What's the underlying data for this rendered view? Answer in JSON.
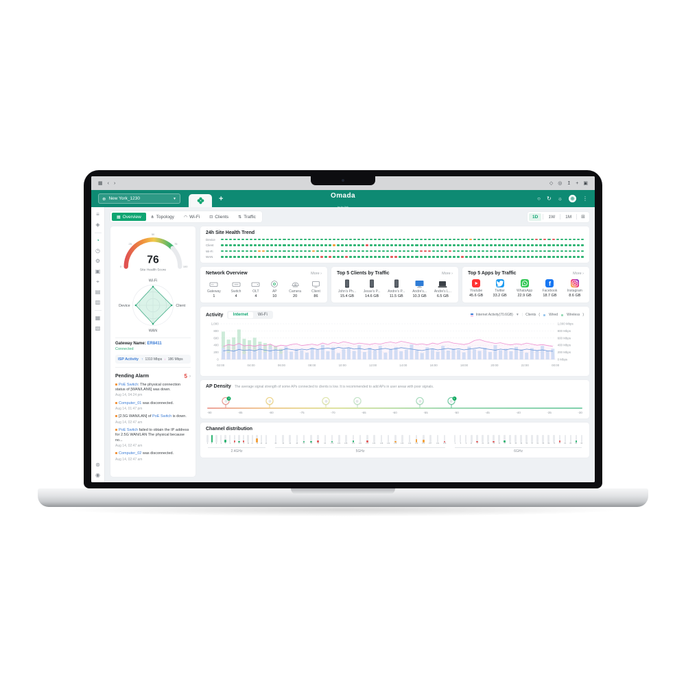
{
  "browser": {
    "window_icons": [
      "window-icon",
      "back-icon",
      "forward-icon"
    ],
    "action_icons": [
      "shield-icon",
      "profile-icon",
      "share-icon",
      "new-tab-icon",
      "tabs-icon"
    ]
  },
  "header": {
    "site_selector": {
      "label": "New York_1230"
    },
    "logo": {
      "main": "Omada",
      "sub": "by tp-link"
    },
    "actions": [
      "search-icon",
      "refresh-icon",
      "brightness-icon",
      "globe-button-icon",
      "more-icon"
    ]
  },
  "nav": {
    "tabs": [
      {
        "label": "Overview",
        "icon": "overview-icon",
        "active": true
      },
      {
        "label": "Topology",
        "icon": "topology-icon",
        "active": false
      },
      {
        "label": "Wi-Fi",
        "icon": "wifi-icon",
        "active": false
      },
      {
        "label": "Clients",
        "icon": "clients-icon",
        "active": false
      },
      {
        "label": "Traffic",
        "icon": "traffic-icon",
        "active": false
      }
    ],
    "time_ranges": [
      {
        "label": "1D",
        "active": true
      },
      {
        "label": "1W",
        "active": false
      },
      {
        "label": "1M",
        "active": false
      }
    ]
  },
  "sidebar": {
    "top": [
      "compose-icon",
      "security-icon"
    ],
    "main": [
      "dashboard-icon",
      "history-icon",
      "settings-icon",
      "media-icon",
      "location-icon",
      "report-icon",
      "log-icon"
    ],
    "secondary": [
      "map-icon",
      "toolbox-icon"
    ],
    "bottom": [
      "preferences-icon",
      "help-icon"
    ],
    "active": "dashboard-icon"
  },
  "site_panel": {
    "gauge": {
      "value": "76",
      "label": "Site Health Score",
      "ticks": [
        "0",
        "25",
        "50",
        "75",
        "100"
      ],
      "percent": 0.76
    },
    "radar": {
      "top": "Wi-Fi",
      "right": "Client",
      "bottom": "WAN",
      "left": "Device",
      "values": [
        0.92,
        0.92,
        0.92,
        0.85
      ]
    },
    "gateway": {
      "label": "Gateway Name:",
      "name": "ER8411",
      "status": "Connected"
    },
    "isp": {
      "label": "ISP Activity",
      "up": "1310 Mbps",
      "down": "186 Mbps"
    },
    "alarms": {
      "title": "Pending Alarm",
      "count": "5",
      "items": [
        {
          "parts": [
            {
              "text": "PoE Switch",
              "link": true
            },
            {
              "text": ": The physical connection status of [WAN/LAN6] was down."
            }
          ],
          "time": "Aug 14, 04:24 pm"
        },
        {
          "parts": [
            {
              "text": "Computer_01",
              "link": true
            },
            {
              "text": " was disconnected."
            }
          ],
          "time": "Aug 14, 01:47 pm"
        },
        {
          "parts": [
            {
              "text": "[2.5G WAN/LAN] of "
            },
            {
              "text": "PoE Switch",
              "link": true
            },
            {
              "text": " is down."
            }
          ],
          "time": "Aug 14, 02:47 am"
        },
        {
          "parts": [
            {
              "text": "PoE Switch",
              "link": true
            },
            {
              "text": " failed to obtain the IP address for 2.5G WAN/LAN The physical because no..."
            }
          ],
          "time": "Aug 14, 02:47 am"
        },
        {
          "parts": [
            {
              "text": "Computer_02",
              "link": true
            },
            {
              "text": " was disconnected."
            }
          ],
          "time": "Aug 14, 02:47 am"
        }
      ]
    }
  },
  "overview_card": {
    "title": "Network Overview",
    "more": "More ›",
    "items": [
      {
        "label": "Gateway",
        "value": "1",
        "icon": "gateway"
      },
      {
        "label": "Switch",
        "value": "4",
        "icon": "switch"
      },
      {
        "label": "OLT",
        "value": "4",
        "icon": "olt"
      },
      {
        "label": "AP",
        "value": "10",
        "icon": "ap"
      },
      {
        "label": "Camera",
        "value": "20",
        "icon": "camera"
      },
      {
        "label": "Client",
        "value": "86",
        "icon": "client"
      }
    ]
  },
  "clients_card": {
    "title": "Top 5 Clients by Traffic",
    "more": "More ›",
    "items": [
      {
        "name": "John's Ph...",
        "value": "15.4 GB",
        "icon": "phone"
      },
      {
        "name": "Jesse's P...",
        "value": "14.6 GB",
        "icon": "phone"
      },
      {
        "name": "Andre's P...",
        "value": "11.5 GB",
        "icon": "phone"
      },
      {
        "name": "Andre's...",
        "value": "10.3 GB",
        "icon": "monitor"
      },
      {
        "name": "Andre's L...",
        "value": "6.5 GB",
        "icon": "laptop"
      }
    ]
  },
  "apps_card": {
    "title": "Top 5 Apps by Traffic",
    "more": "More ›",
    "items": [
      {
        "name": "Youtube",
        "value": "45.6 GB",
        "icon": "youtube",
        "color": "#ff3333"
      },
      {
        "name": "Twitter",
        "value": "33.2 GB",
        "icon": "twitter",
        "color": "#1d9bf0"
      },
      {
        "name": "WhatsApp",
        "value": "22.9 GB",
        "icon": "whatsapp",
        "color": "#2fc653"
      },
      {
        "name": "Facebook",
        "value": "18.7 GB",
        "icon": "facebook",
        "color": "#1877f2"
      },
      {
        "name": "Instagram",
        "value": "8.6 GB",
        "icon": "instagram",
        "color": "gradient"
      }
    ]
  },
  "activity_card": {
    "title": "Activity",
    "tabs": [
      {
        "label": "Internet",
        "active": true
      },
      {
        "label": "Wi-Fi",
        "active": false
      }
    ],
    "legend": "Internet Activity(70.6GB)",
    "clients_legend": {
      "label": "Clients",
      "open": "(",
      "wired": "Wired",
      "wireless": "Wireless",
      "close": ")"
    }
  },
  "density_card": {
    "title": "AP Density",
    "note": "The average signal strength of some APs connected to clients is low. It is recommended to add APs in user areas with poor signals."
  },
  "channel_card": {
    "title": "Channel distribution"
  },
  "chart_data": [
    {
      "id": "site_health_trend",
      "type": "heatmap",
      "title": "24h Site Health Trend",
      "segments": 88,
      "colors": {
        "ok": "#2fb574",
        "warn": "#f2a13c",
        "bad": "#e25b5b"
      },
      "rows": [
        {
          "label": "Device",
          "marks": {
            "60": "o",
            "76": "r",
            "78": "r",
            "80": "r"
          }
        },
        {
          "label": "Client",
          "marks": {
            "27": "o",
            "35": "r"
          }
        },
        {
          "label": "Wi-Fi",
          "marks": {
            "9": "o",
            "10": "o",
            "22": "o",
            "48": "r",
            "49": "r",
            "50": "r",
            "55": "r"
          }
        },
        {
          "label": "WAN",
          "marks": {
            "24": "r",
            "26": "r",
            "30": "r",
            "41": "r",
            "42": "r",
            "58": "r"
          }
        }
      ]
    },
    {
      "id": "activity",
      "type": "line",
      "ylim": [
        0,
        1000
      ],
      "y_ticks_left": [
        "0",
        "200",
        "400",
        "600",
        "800",
        "1,000"
      ],
      "y_ticks_right": [
        "0 Mbps",
        "200 Mbps",
        "400 Mbps",
        "600 Mbps",
        "800 Mbps",
        "1,000 Mbps"
      ],
      "x_ticks": [
        "02:00",
        "04:00",
        "06:00",
        "08:00",
        "10:00",
        "12:00",
        "14:00",
        "16:00",
        "18:00",
        "20:00",
        "22:00",
        "00:00"
      ],
      "series": [
        {
          "name": "client-bars",
          "type": "bar",
          "color": "rgba(88,190,130,0.30)",
          "values": [
            780,
            560,
            620,
            840,
            580,
            540,
            610,
            500,
            460,
            420,
            380,
            300,
            0,
            0,
            120,
            0,
            0,
            0,
            0,
            0,
            0,
            0,
            160,
            0,
            0,
            0,
            0,
            0,
            0,
            140,
            0,
            0,
            0,
            0,
            0,
            0,
            0,
            0,
            180,
            0,
            0,
            0,
            0,
            0,
            150,
            0,
            0,
            0,
            0,
            0,
            0,
            0,
            0,
            0,
            120,
            0,
            0,
            0,
            0,
            0,
            0,
            0,
            0,
            0
          ]
        },
        {
          "name": "internet-bars",
          "type": "bar",
          "color": "#cfe4f8",
          "values": [
            320,
            180,
            260,
            420,
            150,
            300,
            240,
            380,
            200,
            340,
            280,
            160,
            360,
            220,
            300,
            260,
            190,
            330,
            270,
            410,
            230,
            350,
            180,
            290,
            320,
            240,
            400,
            210,
            330,
            260,
            380,
            190,
            300,
            350,
            230,
            280,
            420,
            260,
            180,
            340,
            300,
            220,
            380,
            250,
            310,
            270,
            200,
            360,
            290,
            240,
            330,
            210,
            400,
            260,
            300,
            230,
            350,
            280,
            190,
            320,
            260,
            380,
            240,
            300
          ]
        },
        {
          "name": "upload-line",
          "type": "line",
          "color": "#ee8fd0",
          "values": [
            360,
            420,
            390,
            450,
            380,
            400,
            370,
            410,
            390,
            430,
            360,
            400,
            380,
            420,
            440,
            390,
            410,
            430,
            400,
            460,
            420,
            480,
            450,
            500,
            470,
            430,
            460,
            440,
            420,
            450,
            430,
            470,
            490,
            460,
            510,
            480,
            450,
            420,
            440,
            410,
            460,
            430,
            480,
            500,
            460,
            440,
            420,
            450,
            530,
            560,
            510,
            480,
            450,
            470,
            430,
            410,
            440,
            420,
            460,
            430,
            400,
            420,
            390,
            370
          ]
        },
        {
          "name": "download-line",
          "type": "line",
          "color": "#5b8fd6",
          "values": [
            240,
            260,
            230,
            280,
            250,
            270,
            240,
            290,
            260,
            240,
            270,
            250,
            300,
            280,
            260,
            290,
            270,
            310,
            280,
            300,
            320,
            290,
            340,
            310,
            330,
            290,
            310,
            280,
            300,
            270,
            290,
            310,
            280,
            300,
            330,
            310,
            290,
            270,
            250,
            280,
            300,
            270,
            290,
            310,
            280,
            300,
            270,
            290,
            310,
            330,
            300,
            280,
            260,
            290,
            270,
            300,
            280,
            260,
            290,
            270,
            250,
            270,
            240,
            230
          ]
        }
      ]
    },
    {
      "id": "ap_density",
      "type": "scatter",
      "xlim": [
        -90,
        -30
      ],
      "ticks": [
        "-90",
        "-85",
        "-80",
        "-75",
        "-70",
        "-65",
        "-60",
        "-55",
        "-50",
        "-45",
        "-40",
        "-35",
        "-30"
      ],
      "markers": [
        {
          "x": -87,
          "ring": "#ec9289",
          "badge": "2"
        },
        {
          "x": -80,
          "ring": "#eed27c"
        },
        {
          "x": -71,
          "ring": "#dde4a4"
        },
        {
          "x": -66,
          "ring": "#bfe3c2"
        },
        {
          "x": -56,
          "ring": "#9ed9b6"
        },
        {
          "x": -51,
          "ring": "#63c69a",
          "badge": "1"
        }
      ]
    },
    {
      "id": "channels",
      "type": "bar",
      "colors": {
        "g": "#2fb574",
        "o": "#f2a13c",
        "r": "#e25b5b"
      },
      "groups": [
        {
          "label": "2.4GHz",
          "channels": [
            {
              "n": "1"
            },
            {
              "n": "2",
              "h": 1,
              "c": "g"
            },
            {
              "n": "3"
            },
            {
              "n": "4"
            },
            {
              "n": "5",
              "h": 0.35,
              "c": "g"
            },
            {
              "n": "6"
            },
            {
              "n": "7",
              "h": 0.3,
              "c": "r"
            },
            {
              "n": "8",
              "h": 0.2,
              "c": "g"
            },
            {
              "n": "9",
              "h": 0.3,
              "c": "r"
            },
            {
              "n": "10"
            },
            {
              "n": "11"
            },
            {
              "n": "12",
              "h": 0.55,
              "c": "o"
            },
            {
              "n": "13"
            },
            {
              "n": "14"
            }
          ]
        },
        {
          "label": "5GHz",
          "channels": [
            {
              "n": "36"
            },
            {
              "n": "40"
            },
            {
              "n": "44"
            },
            {
              "n": "48"
            },
            {
              "n": "52",
              "h": 0.2,
              "c": "g"
            },
            {
              "n": "56",
              "h": 0.15,
              "c": "g"
            },
            {
              "n": "60",
              "h": 0.3,
              "c": "r"
            },
            {
              "n": "64"
            },
            {
              "n": "100",
              "h": 0.2,
              "c": "g"
            },
            {
              "n": "104"
            },
            {
              "n": "108"
            },
            {
              "n": "112",
              "h": 0.25,
              "c": "g"
            },
            {
              "n": "116"
            },
            {
              "n": "120",
              "h": 0.3,
              "c": "r"
            },
            {
              "n": "124"
            },
            {
              "n": "128"
            },
            {
              "n": "132"
            },
            {
              "n": "136",
              "h": 0.2,
              "c": "o"
            },
            {
              "n": "140"
            },
            {
              "n": "144"
            },
            {
              "n": "149",
              "h": 0.5,
              "c": "o"
            },
            {
              "n": "153",
              "h": 0.35,
              "c": "o"
            },
            {
              "n": "157"
            },
            {
              "n": "161"
            },
            {
              "n": "165",
              "h": 0.2,
              "c": "r"
            }
          ]
        },
        {
          "label": "6GHz",
          "channels": [
            {
              "n": "1"
            },
            {
              "n": "5"
            },
            {
              "n": "9"
            },
            {
              "n": "13"
            },
            {
              "n": "17",
              "h": 0.2,
              "c": "r"
            },
            {
              "n": "21"
            },
            {
              "n": "25"
            },
            {
              "n": "29",
              "h": 0.2,
              "c": "r"
            },
            {
              "n": "33"
            },
            {
              "n": "37",
              "h": 0.3,
              "c": "g"
            },
            {
              "n": "41"
            },
            {
              "n": "45"
            },
            {
              "n": "49"
            },
            {
              "n": "53"
            },
            {
              "n": "57"
            },
            {
              "n": "61"
            },
            {
              "n": "65"
            },
            {
              "n": "69"
            },
            {
              "n": "73"
            },
            {
              "n": "77",
              "h": 0.3,
              "c": "r"
            },
            {
              "n": "81"
            },
            {
              "n": "85"
            },
            {
              "n": "89",
              "h": 0.3,
              "c": "g"
            },
            {
              "n": "93"
            }
          ]
        }
      ]
    }
  ]
}
